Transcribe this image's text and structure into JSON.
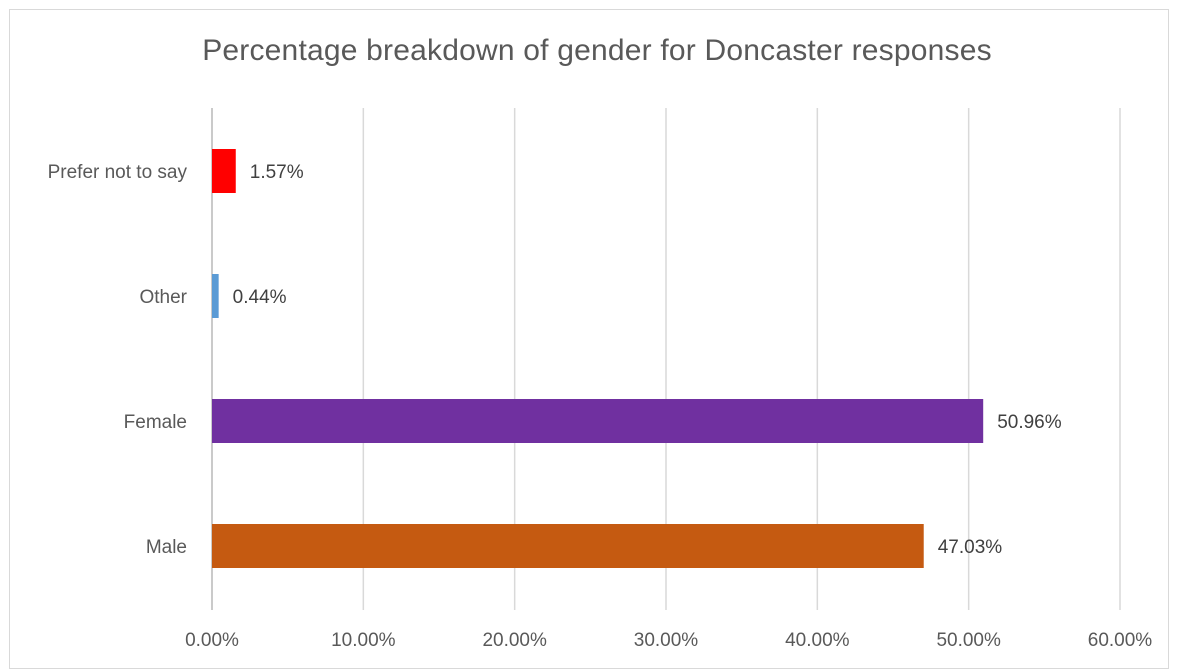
{
  "chart_data": {
    "type": "bar",
    "orientation": "horizontal",
    "title": "Percentage breakdown of gender for Doncaster responses",
    "xlabel": "",
    "ylabel": "",
    "categories": [
      "Male",
      "Female",
      "Other",
      "Prefer not to say"
    ],
    "values": [
      47.03,
      50.96,
      0.44,
      1.57
    ],
    "value_labels": [
      "47.03%",
      "50.96%",
      "0.44%",
      "1.57%"
    ],
    "colors": [
      "#c55a11",
      "#7030a0",
      "#5b9bd5",
      "#ff0000"
    ],
    "xlim": [
      0,
      60
    ],
    "x_ticks": [
      0,
      10,
      20,
      30,
      40,
      50,
      60
    ],
    "x_tick_labels": [
      "0.00%",
      "10.00%",
      "20.00%",
      "30.00%",
      "40.00%",
      "50.00%",
      "60.00%"
    ],
    "grid": "vertical",
    "legend": "none"
  }
}
